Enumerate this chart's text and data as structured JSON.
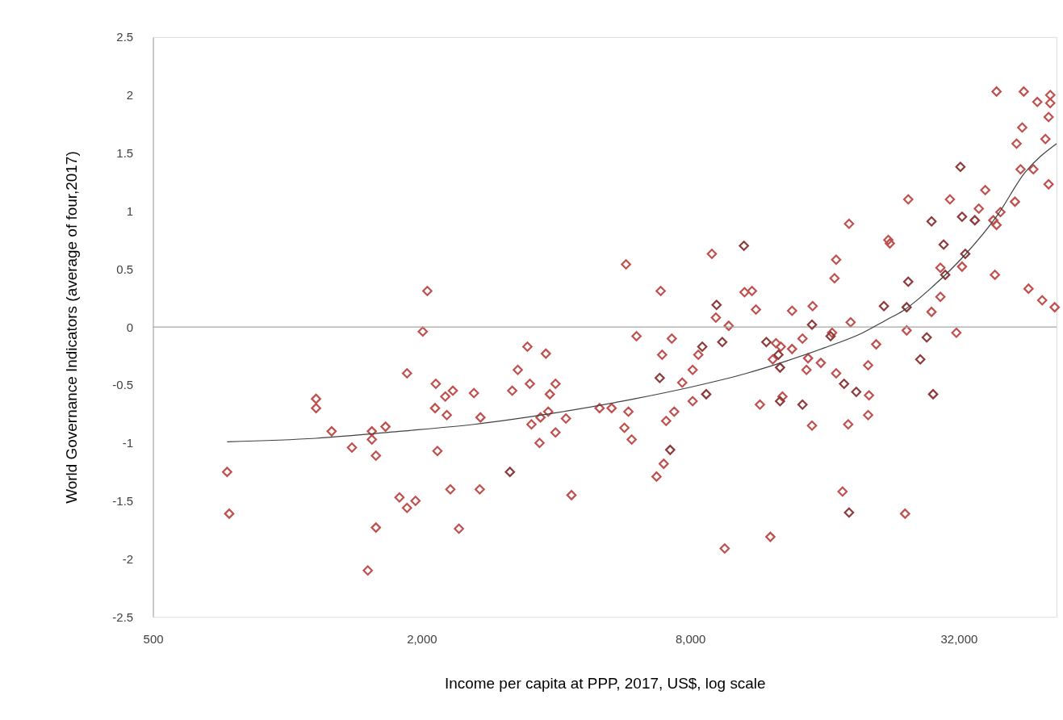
{
  "chart_data": {
    "type": "scatter",
    "xlabel": "Income per capita at PPP, 2017, US$, log scale",
    "ylabel": "World Governance Indicators (average of four,2017)",
    "log": "x",
    "marker": "diamond",
    "grid": false,
    "xlim": [
      500,
      53000
    ],
    "xticks": [
      {
        "value": 500,
        "label": "500"
      },
      {
        "value": 2000,
        "label": "2,000"
      },
      {
        "value": 8000,
        "label": "8,000"
      },
      {
        "value": 32000,
        "label": "32,000"
      }
    ],
    "ylim": [
      -2.5,
      2.5
    ],
    "yticks": [
      -2.5,
      -2,
      -1.5,
      -1,
      -0.5,
      0,
      0.5,
      1,
      1.5,
      2,
      2.5
    ],
    "ref_lines": [
      {
        "axis": "y",
        "value": 0,
        "color": "#a6a6a6"
      }
    ],
    "series": [
      {
        "color": "#c0504d",
        "x": [
          733,
          741,
          1160,
          1160,
          1257,
          1396,
          1547,
          1547,
          1580,
          1660,
          1580,
          1515,
          1784,
          1855,
          1938,
          1855,
          2060,
          2012,
          2152,
          2350,
          2620,
          2260,
          2144,
          2278,
          2710,
          2170,
          2320,
          2700,
          2425,
          5744,
          6870,
          8946,
          10590,
          9133,
          9760,
          8341,
          8102,
          7677,
          8102,
          7365,
          7065,
          6921,
          7274,
          6063,
          5011,
          5333,
          5816,
          5697,
          5914,
          6978,
          6724,
          4335,
          9559,
          3453,
          3798,
          3286,
          3497,
          3193,
          3992,
          3877,
          3845,
          3694,
          3526,
          4213,
          3992,
          3676,
          18160,
          22240,
          22420,
          16990,
          16850,
          11004,
          11233,
          13533,
          15050,
          18310,
          16640,
          14281,
          13533,
          12459,
          12770,
          12252,
          14700,
          15700,
          14580,
          16990,
          20040,
          20890,
          20130,
          20040,
          18080,
          15000,
          12877,
          11465,
          17560,
          12100,
          38880,
          44750,
          47990,
          51300,
          51300,
          50870,
          44390,
          43120,
          50040,
          44020,
          47020,
          50870,
          24650,
          30570,
          36680,
          42760,
          35480,
          39670,
          38240,
          38880,
          29100,
          32540,
          38560,
          45860,
          49210,
          52500,
          27800,
          29100,
          24450,
          31600,
          24250
        ],
        "values": [
          -1.25,
          -1.61,
          -0.62,
          -0.7,
          -0.9,
          -1.04,
          -0.9,
          -0.97,
          -1.11,
          -0.86,
          -1.73,
          -2.1,
          -1.47,
          -1.56,
          -1.5,
          -0.4,
          0.31,
          -0.04,
          -0.49,
          -0.55,
          -0.57,
          -0.6,
          -0.7,
          -0.76,
          -0.78,
          -1.07,
          -1.4,
          -1.4,
          -1.74,
          0.54,
          0.31,
          0.63,
          0.3,
          0.08,
          0.01,
          -0.24,
          -0.37,
          -0.48,
          -0.64,
          -0.73,
          -0.81,
          -0.24,
          -0.1,
          -0.08,
          -0.7,
          -0.7,
          -0.73,
          -0.87,
          -0.97,
          -1.18,
          -1.29,
          -1.45,
          -1.91,
          -0.17,
          -0.23,
          -0.37,
          -0.49,
          -0.55,
          -0.49,
          -0.58,
          -0.73,
          -0.78,
          -0.84,
          -0.79,
          -0.91,
          -1.0,
          0.89,
          0.75,
          0.72,
          0.58,
          0.42,
          0.31,
          0.15,
          0.14,
          0.18,
          0.04,
          -0.05,
          -0.1,
          -0.19,
          -0.14,
          -0.17,
          -0.28,
          -0.27,
          -0.31,
          -0.37,
          -0.4,
          -0.33,
          -0.15,
          -0.59,
          -0.76,
          -0.84,
          -0.85,
          -0.6,
          -0.67,
          -1.42,
          -1.81,
          2.03,
          2.03,
          1.94,
          2.0,
          1.93,
          1.81,
          1.72,
          1.58,
          1.62,
          1.36,
          1.36,
          1.23,
          1.1,
          1.1,
          1.18,
          1.08,
          1.02,
          0.99,
          0.92,
          0.88,
          0.51,
          0.52,
          0.45,
          0.33,
          0.23,
          0.17,
          0.13,
          0.26,
          -0.03,
          -0.05,
          -1.61
        ]
      },
      {
        "color": "#8c3a3a",
        "x": [
          3155,
          6835,
          7214,
          10556,
          9166,
          9440,
          8515,
          8690,
          15000,
          21740,
          16510,
          11852,
          12614,
          12719,
          17700,
          18850,
          14281,
          12719,
          18160,
          32270,
          27800,
          32540,
          34760,
          29590,
          33090,
          29840,
          24650,
          24450,
          27120,
          26230,
          28030
        ],
        "values": [
          -1.25,
          -0.44,
          -1.06,
          0.7,
          0.19,
          -0.13,
          -0.17,
          -0.58,
          0.02,
          0.18,
          -0.08,
          -0.13,
          -0.24,
          -0.35,
          -0.49,
          -0.56,
          -0.67,
          -0.64,
          -1.6,
          1.38,
          0.91,
          0.95,
          0.92,
          0.71,
          0.63,
          0.45,
          0.39,
          0.17,
          -0.09,
          -0.28,
          -0.58
        ]
      },
      {
        "type": "line",
        "color": "#404040",
        "marker": "none",
        "line_style": "solid",
        "x": [
          733,
          1160,
          1784,
          2620,
          4000,
          6000,
          8000,
          10700,
          13000,
          16000,
          19500,
          22000,
          24000,
          28000,
          33000,
          39000,
          45000,
          53000
        ],
        "values": [
          -0.99,
          -0.96,
          -0.9,
          -0.84,
          -0.74,
          -0.62,
          -0.52,
          -0.4,
          -0.3,
          -0.18,
          -0.05,
          0.06,
          0.14,
          0.35,
          0.62,
          0.96,
          1.33,
          1.58
        ]
      }
    ]
  }
}
